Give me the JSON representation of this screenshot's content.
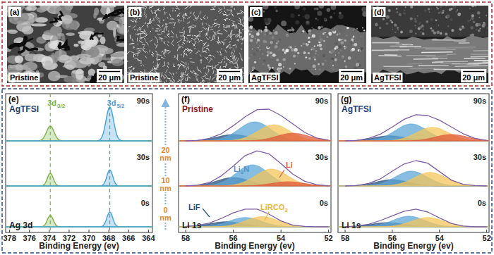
{
  "images": [
    {
      "label": "(a)",
      "caption": "Pristine",
      "scale_bar": "20 μm"
    },
    {
      "label": "(b)",
      "caption": "Pristine",
      "scale_bar": "20 μm"
    },
    {
      "label": "(c)",
      "caption": "AgTFSI",
      "scale_bar": "20 μm"
    },
    {
      "label": "(d)",
      "caption": "AgTFSI",
      "scale_bar": "20 μm"
    }
  ],
  "depth_axis": {
    "labels": [
      "20 nm",
      "10 nm",
      "0 nm"
    ]
  },
  "chart_data": [
    {
      "type": "line",
      "label": "(e)",
      "sample": "AgTFSI",
      "region": "Ag 3d",
      "x_label": "Binding Energy (ev)",
      "xlim": [
        378.4,
        363.6
      ],
      "xticks": [
        378,
        376,
        374,
        372,
        370,
        368,
        366,
        364
      ],
      "ylim": [
        0,
        100
      ],
      "tick_labels": "x",
      "reference_lines": [
        373.9,
        367.9
      ],
      "peak_labels": [
        {
          "text": "3d 3/2",
          "color": "#7cb342"
        },
        {
          "text": "3d 5/2",
          "color": "#45a0d8"
        }
      ],
      "series": [
        {
          "name": "90s",
          "peaks": [
            {
              "center": 373.9,
              "height": 35,
              "fwhm": 0.9,
              "color": "#7cb342"
            },
            {
              "center": 367.9,
              "height": 80,
              "fwhm": 0.9,
              "color": "#45a0d8"
            }
          ]
        },
        {
          "name": "30s",
          "peaks": [
            {
              "center": 373.9,
              "height": 30,
              "fwhm": 0.7,
              "color": "#7cb342"
            },
            {
              "center": 367.9,
              "height": 38,
              "fwhm": 0.7,
              "color": "#45a0d8"
            }
          ]
        },
        {
          "name": "0s",
          "peaks": [
            {
              "center": 373.9,
              "height": 27,
              "fwhm": 0.7,
              "color": "#7cb342"
            },
            {
              "center": 367.9,
              "height": 35,
              "fwhm": 0.7,
              "color": "#45a0d8"
            }
          ]
        }
      ]
    },
    {
      "type": "line",
      "label": "(f)",
      "sample": "Pristine",
      "region": "Li 1s",
      "x_label": "Binding Energy (ev)",
      "xlim": [
        58.3,
        51.9
      ],
      "xticks": [
        58,
        56,
        54,
        52
      ],
      "ylim": [
        0,
        100
      ],
      "tick_labels": "x",
      "color": "#7d5ea8",
      "x": [
        58,
        57.5,
        57,
        56.5,
        56,
        55.5,
        55,
        54.5,
        54,
        53.5,
        53,
        52.5,
        52
      ],
      "annotations": [
        {
          "text": "Li3N",
          "color": "#4f95c9"
        },
        {
          "text": "Li",
          "color": "#e05a3a"
        },
        {
          "text": "LiF",
          "color": "#24507f"
        },
        {
          "text": "LiRCO3",
          "color": "#f0b63c"
        }
      ],
      "series": [
        {
          "name": "90s",
          "values": [
            0,
            1,
            6,
            17,
            36,
            57,
            74,
            75,
            60,
            40,
            20,
            7,
            2
          ],
          "peaks": [
            {
              "center": 56.0,
              "height": 15,
              "fwhm": 1.6,
              "color": "#24507f"
            },
            {
              "center": 55.1,
              "height": 45,
              "fwhm": 1.6,
              "color": "#5ea7d6"
            },
            {
              "center": 54.3,
              "height": 38,
              "fwhm": 1.6,
              "color": "#f3c55b"
            },
            {
              "center": 53.5,
              "height": 18,
              "fwhm": 1.6,
              "color": "#e05a3a"
            }
          ]
        },
        {
          "name": "30s",
          "values": [
            0,
            2,
            8,
            24,
            47,
            72,
            83,
            76,
            53,
            28,
            11,
            3,
            0
          ],
          "peaks": [
            {
              "center": 56.0,
              "height": 20,
              "fwhm": 1.6,
              "color": "#24507f"
            },
            {
              "center": 55.2,
              "height": 50,
              "fwhm": 1.6,
              "color": "#5ea7d6"
            },
            {
              "center": 54.4,
              "height": 40,
              "fwhm": 1.6,
              "color": "#f3c55b"
            },
            {
              "center": 53.7,
              "height": 10,
              "fwhm": 1.6,
              "color": "#e05a3a"
            }
          ]
        },
        {
          "name": "0s",
          "values": [
            1,
            3,
            9,
            20,
            33,
            42,
            42,
            30,
            14,
            4,
            1,
            0,
            0
          ],
          "peaks": [
            {
              "center": 56.3,
              "height": 12,
              "fwhm": 1.6,
              "color": "#24507f"
            },
            {
              "center": 55.5,
              "height": 22,
              "fwhm": 1.6,
              "color": "#5ea7d6"
            },
            {
              "center": 54.8,
              "height": 24,
              "fwhm": 1.6,
              "color": "#f3c55b"
            }
          ]
        }
      ]
    },
    {
      "type": "line",
      "label": "(g)",
      "sample": "AgTFSI",
      "region": "Li 1s",
      "x_label": "Binding Energy (ev)",
      "xlim": [
        58.3,
        51.9
      ],
      "xticks": [
        58,
        56,
        54,
        52
      ],
      "ylim": [
        0,
        100
      ],
      "tick_labels": "x",
      "color": "#7d5ea8",
      "x": [
        58,
        57.5,
        57,
        56.5,
        56,
        55.5,
        55,
        54.5,
        54,
        53.5,
        53,
        52.5,
        52
      ],
      "series": [
        {
          "name": "90s",
          "values": [
            0,
            1,
            6,
            16,
            33,
            51,
            62,
            60,
            49,
            33,
            17,
            6,
            1
          ],
          "peaks": [
            {
              "center": 56.1,
              "height": 12,
              "fwhm": 1.6,
              "color": "#24507f"
            },
            {
              "center": 55.2,
              "height": 40,
              "fwhm": 1.6,
              "color": "#5ea7d6"
            },
            {
              "center": 54.3,
              "height": 32,
              "fwhm": 1.6,
              "color": "#f3c55b"
            },
            {
              "center": 53.5,
              "height": 15,
              "fwhm": 1.6,
              "color": "#e05a3a"
            }
          ]
        },
        {
          "name": "30s",
          "values": [
            0,
            1,
            6,
            17,
            35,
            52,
            60,
            54,
            34,
            14,
            4,
            1,
            0
          ],
          "peaks": [
            {
              "center": 56.0,
              "height": 15,
              "fwhm": 1.6,
              "color": "#24507f"
            },
            {
              "center": 55.2,
              "height": 35,
              "fwhm": 1.6,
              "color": "#5ea7d6"
            },
            {
              "center": 54.4,
              "height": 32,
              "fwhm": 1.6,
              "color": "#f3c55b"
            }
          ]
        },
        {
          "name": "0s",
          "values": [
            0,
            2,
            6,
            15,
            26,
            37,
            42,
            35,
            21,
            8,
            2,
            0,
            0
          ],
          "peaks": [
            {
              "center": 56.2,
              "height": 10,
              "fwhm": 1.6,
              "color": "#24507f"
            },
            {
              "center": 55.3,
              "height": 25,
              "fwhm": 1.6,
              "color": "#5ea7d6"
            },
            {
              "center": 54.5,
              "height": 22,
              "fwhm": 1.6,
              "color": "#f3c55b"
            }
          ]
        }
      ]
    }
  ]
}
